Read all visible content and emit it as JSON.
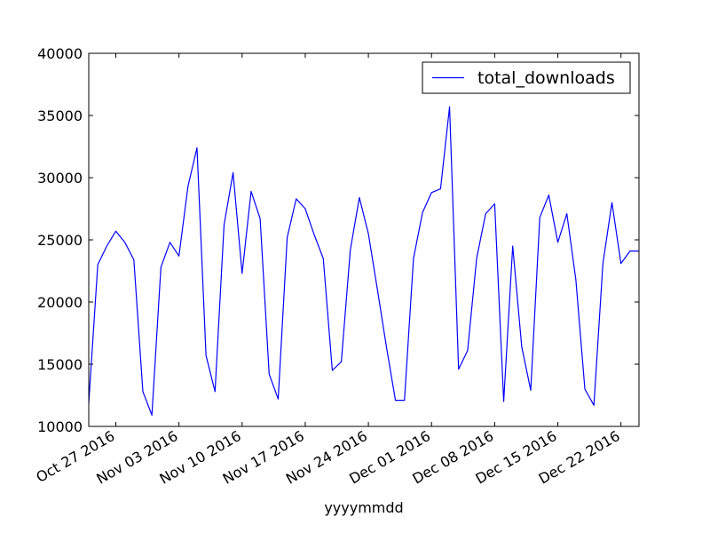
{
  "chart_data": {
    "type": "line",
    "title": "",
    "xlabel": "yyyymmdd",
    "ylabel": "",
    "xlim": [
      "2016-10-24",
      "2016-12-24"
    ],
    "ylim": [
      10000,
      40000
    ],
    "yticks": [
      10000,
      15000,
      20000,
      25000,
      30000,
      35000,
      40000
    ],
    "ytick_labels": [
      "10000",
      "15000",
      "20000",
      "25000",
      "30000",
      "35000",
      "40000"
    ],
    "xticks": [
      "2016-10-27",
      "2016-11-03",
      "2016-11-10",
      "2016-11-17",
      "2016-11-24",
      "2016-12-01",
      "2016-12-08",
      "2016-12-15",
      "2016-12-22"
    ],
    "xtick_labels": [
      "Oct 27 2016",
      "Nov 03 2016",
      "Nov 10 2016",
      "Nov 17 2016",
      "Nov 24 2016",
      "Dec 01 2016",
      "Dec 08 2016",
      "Dec 15 2016",
      "Dec 22 2016"
    ],
    "grid": false,
    "legend_position": "top-right",
    "series": [
      {
        "name": "total_downloads",
        "color": "#0000ff",
        "x": [
          "2016-10-24",
          "2016-10-25",
          "2016-10-26",
          "2016-10-27",
          "2016-10-28",
          "2016-10-29",
          "2016-10-30",
          "2016-10-31",
          "2016-11-01",
          "2016-11-02",
          "2016-11-03",
          "2016-11-04",
          "2016-11-05",
          "2016-11-06",
          "2016-11-07",
          "2016-11-08",
          "2016-11-09",
          "2016-11-10",
          "2016-11-11",
          "2016-11-12",
          "2016-11-13",
          "2016-11-14",
          "2016-11-15",
          "2016-11-16",
          "2016-11-17",
          "2016-11-18",
          "2016-11-19",
          "2016-11-20",
          "2016-11-21",
          "2016-11-22",
          "2016-11-23",
          "2016-11-24",
          "2016-11-25",
          "2016-11-26",
          "2016-11-27",
          "2016-11-28",
          "2016-11-29",
          "2016-11-30",
          "2016-12-01",
          "2016-12-02",
          "2016-12-03",
          "2016-12-04",
          "2016-12-05",
          "2016-12-06",
          "2016-12-07",
          "2016-12-08",
          "2016-12-09",
          "2016-12-10",
          "2016-12-11",
          "2016-12-12",
          "2016-12-13",
          "2016-12-14",
          "2016-12-15",
          "2016-12-16",
          "2016-12-17",
          "2016-12-18",
          "2016-12-19",
          "2016-12-20",
          "2016-12-21",
          "2016-12-22",
          "2016-12-23",
          "2016-12-24"
        ],
        "y": [
          11900,
          23000,
          24500,
          25700,
          24800,
          23400,
          12800,
          10900,
          22800,
          24800,
          23700,
          29300,
          32400,
          15700,
          12800,
          26200,
          30400,
          22300,
          28900,
          26700,
          14200,
          12200,
          25200,
          28300,
          27500,
          25400,
          23500,
          14500,
          15200,
          24200,
          28400,
          25500,
          21000,
          16400,
          12100,
          12100,
          23500,
          27200,
          28800,
          29100,
          35700,
          14600,
          16100,
          23500,
          27100,
          27900,
          12000,
          24500,
          16400,
          12900,
          26800,
          28600,
          24800,
          27100,
          21800,
          13000,
          11700,
          23100,
          28000,
          23100,
          24100,
          24100
        ]
      }
    ]
  }
}
